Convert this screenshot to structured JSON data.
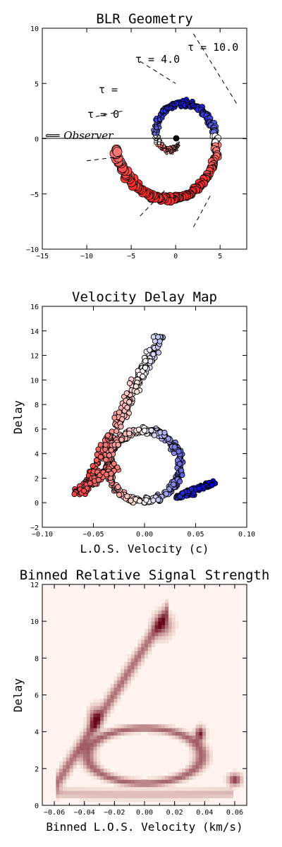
{
  "chart_data": [
    {
      "type": "scatter",
      "title": "BLR Geometry",
      "xlabel": "",
      "ylabel": "",
      "xlim": [
        -15,
        8
      ],
      "ylim": [
        -10,
        10
      ],
      "xticks": [
        "−15",
        "−10",
        "−5",
        "0",
        "5"
      ],
      "xtick_values": [
        -15,
        -10,
        -5,
        0,
        5
      ],
      "yticks": [
        "10",
        "5",
        "0",
        "−5",
        "−10"
      ],
      "ytick_values": [
        10,
        5,
        0,
        -5,
        -10
      ],
      "annotations": {
        "tau_10": "τ = 10.0",
        "tau_4": "τ = 4.0",
        "tau_mid": "τ =",
        "tau_0": "τ = 0",
        "observer": "⟸ Observer"
      },
      "colormap": {
        "approaching": "#0000cc",
        "receding": "#ff3030",
        "neutral": "#ffffff"
      }
    },
    {
      "type": "scatter",
      "title": "Velocity Delay Map",
      "xlabel": "L.O.S. Velocity (c)",
      "ylabel": "Delay",
      "xlim": [
        -0.1,
        0.1
      ],
      "ylim": [
        -2,
        16
      ],
      "xticks": [
        "−0.10",
        "−0.05",
        "0.00",
        "0.05",
        "0.10"
      ],
      "xtick_values": [
        -0.1,
        -0.05,
        0,
        0.05,
        0.1
      ],
      "yticks": [
        "16",
        "14",
        "12",
        "10",
        "8",
        "6",
        "4",
        "2",
        "0",
        "−2"
      ],
      "ytick_values": [
        16,
        14,
        12,
        10,
        8,
        6,
        4,
        2,
        0,
        -2
      ]
    },
    {
      "type": "heatmap",
      "title": "Binned Relative Signal Strength",
      "xlabel": "Binned L.O.S. Velocity (km/s)",
      "ylabel": "Delay",
      "xlim": [
        -0.068,
        0.068
      ],
      "ylim": [
        0,
        12
      ],
      "xticks": [
        "−0.06",
        "−0.04",
        "−0.02",
        "0.00",
        "0.02",
        "0.04",
        "0.06"
      ],
      "xtick_values": [
        -0.06,
        -0.04,
        -0.02,
        0,
        0.02,
        0.04,
        0.06
      ],
      "yticks": [
        "12",
        "10",
        "8",
        "6",
        "4",
        "2",
        "0"
      ],
      "ytick_values": [
        12,
        10,
        8,
        6,
        4,
        2,
        0
      ],
      "colormap": "Reds"
    }
  ]
}
